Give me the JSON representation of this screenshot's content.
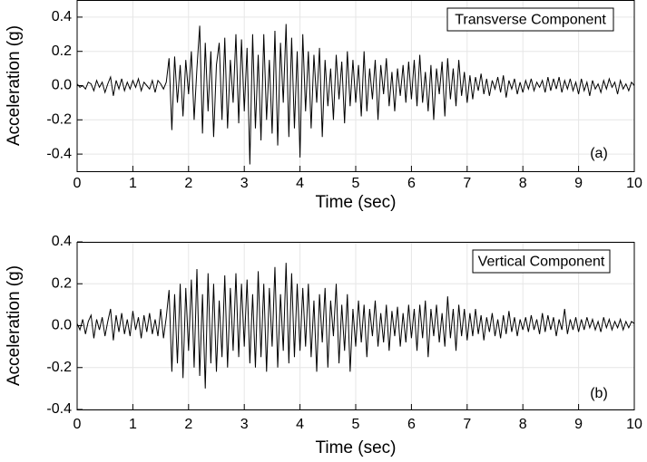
{
  "chart_data": [
    {
      "type": "line",
      "xlabel": "Time (sec)",
      "ylabel": "Acceleration (g)",
      "panel_label": "(a)",
      "xlim": [
        0,
        10
      ],
      "xticks": [
        0,
        1,
        2,
        3,
        4,
        5,
        6,
        7,
        8,
        9,
        10
      ],
      "ylim": [
        -0.5,
        0.5
      ],
      "yticks": [
        -0.4,
        -0.2,
        {
          "value": 0,
          "label": "0.0"
        },
        0.2,
        0.4
      ],
      "grid": true,
      "x": [
        0,
        0.05,
        0.1,
        0.15,
        0.2,
        0.25,
        0.3,
        0.35,
        0.4,
        0.45,
        0.5,
        0.55,
        0.6,
        0.65,
        0.7,
        0.75,
        0.8,
        0.85,
        0.9,
        0.95,
        1,
        1.05,
        1.1,
        1.15,
        1.2,
        1.25,
        1.3,
        1.35,
        1.4,
        1.45,
        1.5,
        1.55,
        1.6,
        1.65,
        1.7,
        1.75,
        1.8,
        1.85,
        1.9,
        1.95,
        2,
        2.05,
        2.1,
        2.15,
        2.2,
        2.25,
        2.3,
        2.35,
        2.4,
        2.45,
        2.5,
        2.55,
        2.6,
        2.65,
        2.7,
        2.75,
        2.8,
        2.85,
        2.9,
        2.95,
        3,
        3.05,
        3.1,
        3.15,
        3.2,
        3.25,
        3.3,
        3.35,
        3.4,
        3.45,
        3.5,
        3.55,
        3.6,
        3.65,
        3.7,
        3.75,
        3.8,
        3.85,
        3.9,
        3.95,
        4,
        4.05,
        4.1,
        4.15,
        4.2,
        4.25,
        4.3,
        4.35,
        4.4,
        4.45,
        4.5,
        4.55,
        4.6,
        4.65,
        4.7,
        4.75,
        4.8,
        4.85,
        4.9,
        4.95,
        5,
        5.05,
        5.1,
        5.15,
        5.2,
        5.25,
        5.3,
        5.35,
        5.4,
        5.45,
        5.5,
        5.55,
        5.6,
        5.65,
        5.7,
        5.75,
        5.8,
        5.85,
        5.9,
        5.95,
        6,
        6.05,
        6.1,
        6.15,
        6.2,
        6.25,
        6.3,
        6.35,
        6.4,
        6.45,
        6.5,
        6.55,
        6.6,
        6.65,
        6.7,
        6.75,
        6.8,
        6.85,
        6.9,
        6.95,
        7,
        7.05,
        7.1,
        7.15,
        7.2,
        7.25,
        7.3,
        7.35,
        7.4,
        7.45,
        7.5,
        7.55,
        7.6,
        7.65,
        7.7,
        7.75,
        7.8,
        7.85,
        7.9,
        7.95,
        8,
        8.05,
        8.1,
        8.15,
        8.2,
        8.25,
        8.3,
        8.35,
        8.4,
        8.45,
        8.5,
        8.55,
        8.6,
        8.65,
        8.7,
        8.75,
        8.8,
        8.85,
        8.9,
        8.95,
        9,
        9.05,
        9.1,
        9.15,
        9.2,
        9.25,
        9.3,
        9.35,
        9.4,
        9.45,
        9.5,
        9.55,
        9.6,
        9.65,
        9.7,
        9.75,
        9.8,
        9.85,
        9.9,
        9.95,
        10
      ],
      "series": [
        {
          "name": "Transverse Component",
          "color": "#000000",
          "values": [
            0.01,
            -0.01,
            0.0,
            -0.02,
            0.02,
            0.01,
            -0.03,
            0.03,
            -0.01,
            0.02,
            -0.04,
            0.01,
            0.05,
            -0.06,
            0.03,
            -0.02,
            0.04,
            -0.03,
            0.02,
            -0.02,
            0.03,
            -0.01,
            0.04,
            -0.03,
            0.02,
            0.0,
            -0.02,
            0.03,
            -0.04,
            0.03,
            0.01,
            -0.02,
            0.02,
            0.16,
            -0.26,
            0.17,
            -0.1,
            0.12,
            -0.18,
            0.15,
            -0.05,
            0.2,
            -0.2,
            0.1,
            0.35,
            -0.28,
            0.25,
            -0.15,
            0.2,
            -0.3,
            0.12,
            0.25,
            -0.2,
            0.28,
            -0.25,
            0.15,
            -0.1,
            0.3,
            -0.22,
            0.27,
            -0.15,
            0.22,
            -0.46,
            0.3,
            -0.25,
            0.18,
            -0.32,
            0.3,
            -0.2,
            0.15,
            -0.28,
            0.32,
            -0.35,
            0.25,
            -0.1,
            0.36,
            -0.3,
            0.28,
            -0.25,
            0.2,
            -0.42,
            0.3,
            -0.15,
            0.2,
            -0.25,
            0.18,
            -0.1,
            0.22,
            -0.3,
            0.15,
            -0.12,
            0.1,
            -0.2,
            0.18,
            -0.08,
            0.14,
            -0.22,
            0.2,
            -0.12,
            0.15,
            -0.1,
            0.12,
            -0.18,
            0.2,
            -0.15,
            0.1,
            -0.08,
            0.15,
            -0.2,
            0.12,
            -0.05,
            0.16,
            -0.12,
            0.08,
            -0.15,
            0.1,
            -0.06,
            0.12,
            -0.1,
            0.14,
            -0.08,
            0.15,
            -0.12,
            0.18,
            -0.1,
            0.08,
            -0.15,
            0.12,
            -0.2,
            0.1,
            -0.05,
            0.14,
            -0.18,
            0.16,
            -0.08,
            0.1,
            -0.12,
            0.15,
            -0.06,
            0.08,
            -0.1,
            0.06,
            -0.08,
            0.05,
            -0.03,
            0.07,
            -0.05,
            0.04,
            -0.06,
            0.03,
            -0.02,
            0.05,
            -0.04,
            0.06,
            -0.07,
            0.03,
            -0.02,
            0.04,
            -0.05,
            0.02,
            -0.04,
            0.03,
            -0.02,
            0.04,
            -0.03,
            0.02,
            -0.01,
            0.03,
            -0.04,
            0.05,
            -0.03,
            0.04,
            -0.02,
            0.05,
            -0.04,
            0.03,
            -0.02,
            0.04,
            -0.03,
            0.02,
            -0.05,
            0.04,
            -0.03,
            0.02,
            -0.06,
            0.03,
            -0.02,
            0.01,
            -0.04,
            0.03,
            -0.02,
            0.04,
            -0.01,
            0.02,
            -0.05,
            0.03,
            -0.02,
            0.01,
            -0.03,
            0.02,
            0.0
          ]
        }
      ]
    },
    {
      "type": "line",
      "xlabel": "Time (sec)",
      "ylabel": "Acceleration (g)",
      "panel_label": "(b)",
      "xlim": [
        0,
        10
      ],
      "xticks": [
        0,
        1,
        2,
        3,
        4,
        5,
        6,
        7,
        8,
        9,
        10
      ],
      "ylim": [
        -0.4,
        0.4
      ],
      "yticks": [
        -0.4,
        -0.2,
        {
          "value": 0,
          "label": "0.0"
        },
        0.2,
        0.4
      ],
      "grid": true,
      "x": [
        0,
        0.05,
        0.1,
        0.15,
        0.2,
        0.25,
        0.3,
        0.35,
        0.4,
        0.45,
        0.5,
        0.55,
        0.6,
        0.65,
        0.7,
        0.75,
        0.8,
        0.85,
        0.9,
        0.95,
        1,
        1.05,
        1.1,
        1.15,
        1.2,
        1.25,
        1.3,
        1.35,
        1.4,
        1.45,
        1.5,
        1.55,
        1.6,
        1.65,
        1.7,
        1.75,
        1.8,
        1.85,
        1.9,
        1.95,
        2,
        2.05,
        2.1,
        2.15,
        2.2,
        2.25,
        2.3,
        2.35,
        2.4,
        2.45,
        2.5,
        2.55,
        2.6,
        2.65,
        2.7,
        2.75,
        2.8,
        2.85,
        2.9,
        2.95,
        3,
        3.05,
        3.1,
        3.15,
        3.2,
        3.25,
        3.3,
        3.35,
        3.4,
        3.45,
        3.5,
        3.55,
        3.6,
        3.65,
        3.7,
        3.75,
        3.8,
        3.85,
        3.9,
        3.95,
        4,
        4.05,
        4.1,
        4.15,
        4.2,
        4.25,
        4.3,
        4.35,
        4.4,
        4.45,
        4.5,
        4.55,
        4.6,
        4.65,
        4.7,
        4.75,
        4.8,
        4.85,
        4.9,
        4.95,
        5,
        5.05,
        5.1,
        5.15,
        5.2,
        5.25,
        5.3,
        5.35,
        5.4,
        5.45,
        5.5,
        5.55,
        5.6,
        5.65,
        5.7,
        5.75,
        5.8,
        5.85,
        5.9,
        5.95,
        6,
        6.05,
        6.1,
        6.15,
        6.2,
        6.25,
        6.3,
        6.35,
        6.4,
        6.45,
        6.5,
        6.55,
        6.6,
        6.65,
        6.7,
        6.75,
        6.8,
        6.85,
        6.9,
        6.95,
        7,
        7.05,
        7.1,
        7.15,
        7.2,
        7.25,
        7.3,
        7.35,
        7.4,
        7.45,
        7.5,
        7.55,
        7.6,
        7.65,
        7.7,
        7.75,
        7.8,
        7.85,
        7.9,
        7.95,
        8,
        8.05,
        8.1,
        8.15,
        8.2,
        8.25,
        8.3,
        8.35,
        8.4,
        8.45,
        8.5,
        8.55,
        8.6,
        8.65,
        8.7,
        8.75,
        8.8,
        8.85,
        8.9,
        8.95,
        9,
        9.05,
        9.1,
        9.15,
        9.2,
        9.25,
        9.3,
        9.35,
        9.4,
        9.45,
        9.5,
        9.55,
        9.6,
        9.65,
        9.7,
        9.75,
        9.8,
        9.85,
        9.9,
        9.95,
        10
      ],
      "series": [
        {
          "name": "Vertical Component",
          "color": "#000000",
          "values": [
            0.01,
            -0.02,
            0.03,
            -0.04,
            0.02,
            0.05,
            -0.06,
            0.03,
            -0.02,
            0.04,
            -0.05,
            0.02,
            0.08,
            -0.07,
            0.05,
            -0.03,
            0.06,
            -0.04,
            0.03,
            -0.05,
            0.07,
            -0.02,
            0.04,
            -0.06,
            0.05,
            -0.03,
            0.06,
            -0.04,
            0.03,
            -0.05,
            0.08,
            -0.06,
            0.04,
            0.17,
            -0.22,
            0.15,
            -0.18,
            0.2,
            -0.25,
            0.18,
            -0.12,
            0.22,
            -0.2,
            0.27,
            -0.24,
            0.15,
            -0.3,
            0.25,
            -0.18,
            0.2,
            -0.22,
            0.12,
            -0.15,
            0.24,
            -0.2,
            0.18,
            -0.12,
            0.25,
            -0.15,
            0.2,
            -0.1,
            0.22,
            -0.18,
            0.15,
            -0.2,
            0.26,
            -0.15,
            0.2,
            -0.22,
            0.18,
            -0.1,
            0.28,
            -0.2,
            0.15,
            -0.12,
            0.3,
            -0.18,
            0.25,
            -0.15,
            0.2,
            -0.12,
            0.18,
            -0.1,
            0.2,
            -0.15,
            0.12,
            -0.22,
            0.15,
            -0.08,
            0.18,
            -0.2,
            0.12,
            -0.05,
            0.2,
            -0.18,
            0.1,
            -0.12,
            0.15,
            -0.22,
            0.08,
            -0.1,
            0.12,
            -0.08,
            0.1,
            -0.15,
            0.08,
            -0.05,
            0.12,
            -0.1,
            0.06,
            -0.08,
            0.1,
            -0.12,
            0.07,
            -0.05,
            0.09,
            -0.1,
            0.06,
            -0.08,
            0.1,
            -0.06,
            0.08,
            -0.12,
            0.1,
            -0.06,
            0.12,
            -0.15,
            0.08,
            -0.05,
            0.1,
            -0.08,
            0.06,
            -0.1,
            0.14,
            -0.06,
            0.08,
            -0.12,
            0.1,
            -0.05,
            0.08,
            -0.07,
            0.06,
            -0.05,
            0.08,
            -0.04,
            0.05,
            -0.07,
            0.04,
            -0.03,
            0.06,
            -0.05,
            0.03,
            -0.06,
            0.05,
            -0.04,
            0.07,
            -0.03,
            0.04,
            -0.05,
            0.03,
            -0.02,
            0.04,
            -0.03,
            0.05,
            -0.02,
            0.03,
            -0.04,
            0.06,
            -0.03,
            0.05,
            -0.02,
            0.04,
            -0.05,
            0.03,
            -0.02,
            0.08,
            -0.04,
            0.03,
            -0.02,
            0.04,
            -0.03,
            0.03,
            -0.02,
            0.04,
            -0.01,
            0.03,
            -0.02,
            0.02,
            -0.03,
            0.04,
            -0.01,
            0.03,
            -0.02,
            0.02,
            -0.01,
            0.03,
            -0.02,
            0.02,
            -0.01,
            0.02,
            0.01
          ]
        }
      ]
    }
  ]
}
